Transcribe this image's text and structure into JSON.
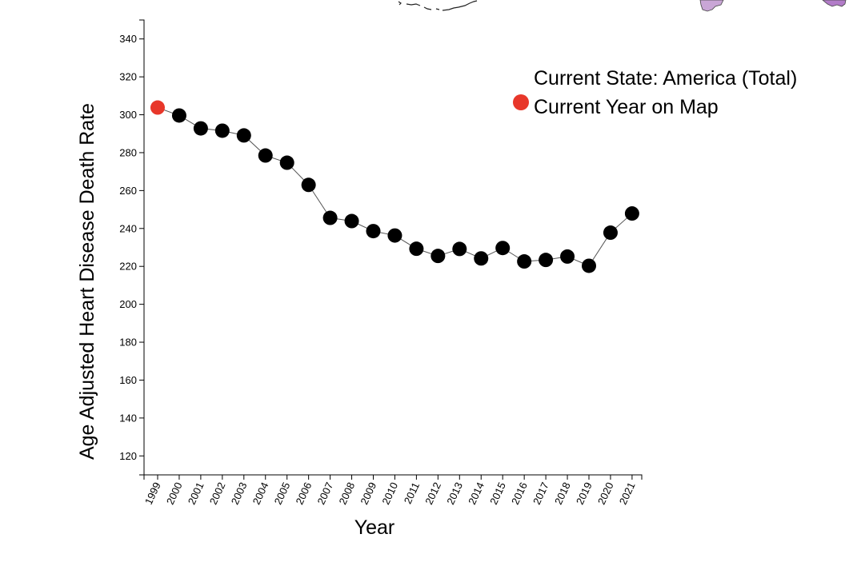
{
  "chart_data": {
    "type": "line",
    "title": "",
    "xlabel": "Year",
    "ylabel": "Age Adjusted Heart Disease Death Rate",
    "ylim": [
      110,
      350
    ],
    "yticks": [
      120,
      140,
      160,
      180,
      200,
      220,
      240,
      260,
      280,
      300,
      320,
      340
    ],
    "categories": [
      "1999",
      "2000",
      "2001",
      "2002",
      "2003",
      "2004",
      "2005",
      "2006",
      "2007",
      "2008",
      "2009",
      "2010",
      "2011",
      "2012",
      "2013",
      "2014",
      "2015",
      "2016",
      "2017",
      "2018",
      "2019",
      "2020",
      "2021"
    ],
    "series": [
      {
        "name": "America (Total)",
        "values": [
          303.8,
          299.6,
          292.8,
          291.6,
          289.1,
          278.5,
          274.7,
          263.0,
          245.6,
          243.9,
          238.6,
          236.3,
          229.3,
          225.5,
          229.2,
          224.2,
          229.7,
          222.6,
          223.4,
          225.2,
          220.3,
          237.8,
          247.9
        ],
        "point_color": "#000000",
        "line_color": "#555555"
      }
    ],
    "highlight": {
      "year": "1999",
      "color": "#e8372a",
      "label": "Current Year on Map"
    },
    "grid": false,
    "legend": {
      "position": "top-right",
      "entries": [
        {
          "label": "Current State: America (Total)",
          "marker": "none"
        },
        {
          "label": "Current Year on Map",
          "marker": "circle",
          "color": "#e8372a"
        }
      ]
    }
  },
  "map_fragments": {
    "colors": [
      "#c9a6d6",
      "#b27cc8"
    ]
  }
}
